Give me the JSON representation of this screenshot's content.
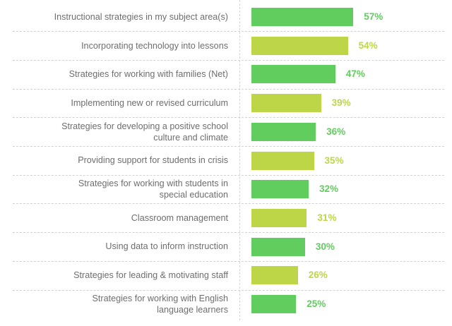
{
  "chart_data": {
    "type": "bar",
    "orientation": "horizontal",
    "title": "",
    "xlabel": "",
    "ylabel": "",
    "xlim": [
      0,
      100
    ],
    "grid": "dashed row separators",
    "legend": null,
    "categories": [
      "Instructional strategies in my subject area(s)",
      "Incorporating technology into lessons",
      "Strategies for working with families (Net)",
      "Implementing new or revised curriculum",
      "Strategies for developing a positive school culture and climate",
      "Providing support for students in crisis",
      "Strategies for working with students in special education",
      "Classroom management",
      "Using data to inform instruction",
      "Strategies for leading & motivating staff",
      "Strategies for working with English language learners"
    ],
    "values": [
      57,
      54,
      47,
      39,
      36,
      35,
      32,
      31,
      30,
      26,
      25
    ],
    "value_labels": [
      "57%",
      "54%",
      "47%",
      "39%",
      "36%",
      "35%",
      "32%",
      "31%",
      "30%",
      "26%",
      "25%"
    ],
    "colors": {
      "green": "#62CD5F",
      "lime": "#BDD648"
    },
    "bar_color_pattern": [
      "green",
      "lime",
      "green",
      "lime",
      "green",
      "lime",
      "green",
      "lime",
      "green",
      "lime",
      "green"
    ]
  },
  "rows": [
    {
      "lines": [
        "Instructional strategies in my subject area(s)"
      ],
      "value": 57,
      "label": "57%",
      "color": "#62CD5F"
    },
    {
      "lines": [
        "Incorporating technology into lessons"
      ],
      "value": 54,
      "label": "54%",
      "color": "#BDD648"
    },
    {
      "lines": [
        "Strategies for working with families (Net)"
      ],
      "value": 47,
      "label": "47%",
      "color": "#62CD5F"
    },
    {
      "lines": [
        "Implementing new or revised curriculum"
      ],
      "value": 39,
      "label": "39%",
      "color": "#BDD648"
    },
    {
      "lines": [
        "Strategies for developing a positive school",
        "culture and climate"
      ],
      "value": 36,
      "label": "36%",
      "color": "#62CD5F"
    },
    {
      "lines": [
        "Providing support for students in crisis"
      ],
      "value": 35,
      "label": "35%",
      "color": "#BDD648"
    },
    {
      "lines": [
        "Strategies for working with students in",
        "special education"
      ],
      "value": 32,
      "label": "32%",
      "color": "#62CD5F"
    },
    {
      "lines": [
        "Classroom management"
      ],
      "value": 31,
      "label": "31%",
      "color": "#BDD648"
    },
    {
      "lines": [
        "Using data to inform instruction"
      ],
      "value": 30,
      "label": "30%",
      "color": "#62CD5F"
    },
    {
      "lines": [
        "Strategies for leading & motivating staff"
      ],
      "value": 26,
      "label": "26%",
      "color": "#BDD648"
    },
    {
      "lines": [
        "Strategies for working with English",
        "language learners"
      ],
      "value": 25,
      "label": "25%",
      "color": "#62CD5F"
    }
  ]
}
